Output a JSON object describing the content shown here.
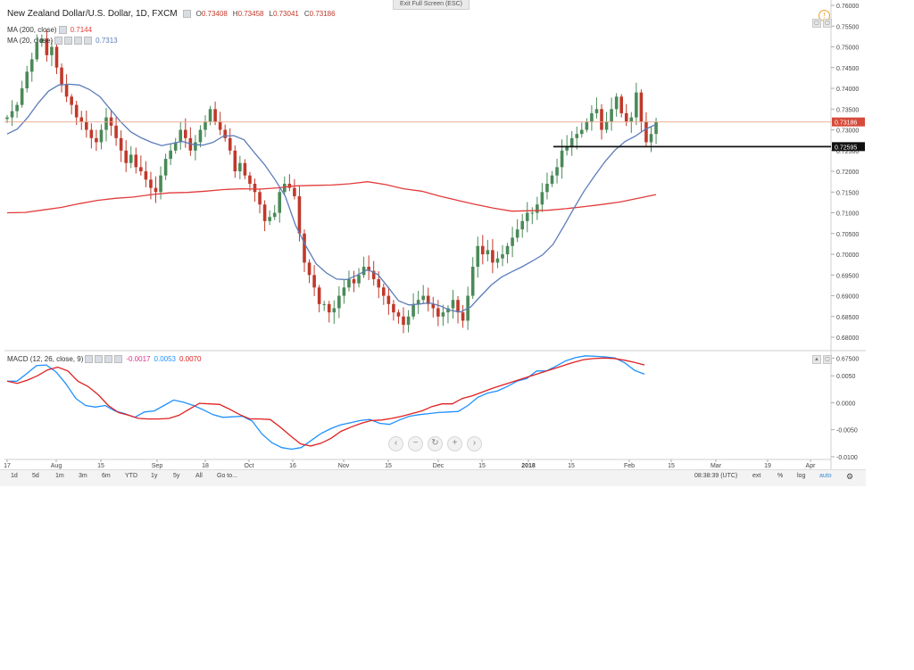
{
  "exit_fullscreen": "Exit Full Screen (ESC)",
  "legend": {
    "title": "New Zealand Dollar/U.S. Dollar, 1D, FXCM",
    "ohlc": [
      {
        "k": "O",
        "v": "0.73408"
      },
      {
        "k": "H",
        "v": "0.73458"
      },
      {
        "k": "L",
        "v": "0.73041"
      },
      {
        "k": "C",
        "v": "0.73186"
      }
    ],
    "ma200_label": "MA (200, close)",
    "ma200_value": "0.7144",
    "ma20_label": "MA (20, close)",
    "ma20_value": "0.7313",
    "macd_label": "MACD (12, 26, close, 9)",
    "macd_values": [
      "-0.0017",
      "0.0053",
      "0.0070"
    ]
  },
  "colors": {
    "up": "#4a8a58",
    "down": "#c0392b",
    "ma20": "#5b7cb8",
    "ma200": "#e23b3b",
    "macd": "#1e90ff",
    "signal": "#e02020",
    "last_price": "#d64a3a"
  },
  "price_labels": {
    "last": "0.73186",
    "marked": "0.72595"
  },
  "time_labels": [
    "17",
    "Aug",
    "15",
    "Sep",
    "18",
    "Oct",
    "16",
    "Nov",
    "15",
    "Dec",
    "15",
    "2018",
    "15",
    "Feb",
    "15",
    "Mar",
    "19",
    "Apr"
  ],
  "toolbar": {
    "periods": [
      "1d",
      "5d",
      "1m",
      "3m",
      "6m",
      "YTD",
      "1y",
      "5y",
      "All",
      "Go to..."
    ],
    "time": "08:38:39 (UTC)",
    "right": [
      "ext",
      "%",
      "log",
      "auto"
    ]
  },
  "chart_data": [
    {
      "type": "candlestick",
      "title": "New Zealand Dollar/U.S. Dollar, 1D, FXCM",
      "ylim": [
        0.677,
        0.76
      ],
      "y_ticks": [
        "0.67500",
        "0.68000",
        "0.68500",
        "0.69000",
        "0.69500",
        "0.70000",
        "0.70500",
        "0.71000",
        "0.71500",
        "0.72000",
        "0.72500",
        "0.73000",
        "0.73500",
        "0.74000",
        "0.74500",
        "0.75000",
        "0.75500",
        "0.76000"
      ],
      "close": [
        0.733,
        0.7345,
        0.736,
        0.74,
        0.744,
        0.747,
        0.751,
        0.752,
        0.748,
        0.75,
        0.745,
        0.741,
        0.738,
        0.736,
        0.733,
        0.732,
        0.73,
        0.728,
        0.727,
        0.73,
        0.733,
        0.731,
        0.728,
        0.725,
        0.722,
        0.724,
        0.721,
        0.72,
        0.718,
        0.716,
        0.715,
        0.719,
        0.723,
        0.725,
        0.727,
        0.73,
        0.728,
        0.725,
        0.727,
        0.73,
        0.732,
        0.735,
        0.732,
        0.73,
        0.728,
        0.725,
        0.72,
        0.722,
        0.719,
        0.717,
        0.715,
        0.712,
        0.708,
        0.709,
        0.71,
        0.715,
        0.717,
        0.716,
        0.714,
        0.705,
        0.698,
        0.695,
        0.692,
        0.688,
        0.688,
        0.686,
        0.687,
        0.69,
        0.692,
        0.694,
        0.693,
        0.695,
        0.697,
        0.696,
        0.694,
        0.692,
        0.69,
        0.688,
        0.686,
        0.685,
        0.683,
        0.685,
        0.688,
        0.689,
        0.69,
        0.688,
        0.687,
        0.685,
        0.686,
        0.687,
        0.689,
        0.686,
        0.684,
        0.69,
        0.697,
        0.702,
        0.7,
        0.701,
        0.698,
        0.699,
        0.7,
        0.702,
        0.704,
        0.706,
        0.708,
        0.71,
        0.71,
        0.712,
        0.715,
        0.717,
        0.719,
        0.721,
        0.725,
        0.726,
        0.728,
        0.729,
        0.73,
        0.732,
        0.734,
        0.735,
        0.73,
        0.732,
        0.735,
        0.738,
        0.734,
        0.732,
        0.733,
        0.739,
        0.732,
        0.727,
        0.729,
        0.7319
      ],
      "ma200": [
        0.71,
        0.7101,
        0.7107,
        0.7113,
        0.7122,
        0.713,
        0.7135,
        0.7138,
        0.7144,
        0.7148,
        0.7149,
        0.7152,
        0.7156,
        0.7158,
        0.7157,
        0.716,
        0.7165,
        0.7166,
        0.7167,
        0.717,
        0.7175,
        0.7168,
        0.7158,
        0.7152,
        0.714,
        0.713,
        0.712,
        0.7111,
        0.7104,
        0.7105,
        0.7106,
        0.711,
        0.7115,
        0.712,
        0.7126,
        0.7135,
        0.7144
      ],
      "ma20": [
        0.729,
        0.7302,
        0.733,
        0.7364,
        0.7393,
        0.7408,
        0.741,
        0.7408,
        0.7397,
        0.738,
        0.735,
        0.732,
        0.7295,
        0.7281,
        0.727,
        0.7262,
        0.7267,
        0.7272,
        0.7265,
        0.7263,
        0.727,
        0.7285,
        0.7286,
        0.7276,
        0.7245,
        0.7216,
        0.718,
        0.714,
        0.707,
        0.702,
        0.6977,
        0.6955,
        0.694,
        0.6939,
        0.695,
        0.6963,
        0.6951,
        0.692,
        0.6888,
        0.6878,
        0.688,
        0.6883,
        0.6876,
        0.6865,
        0.6861,
        0.6873,
        0.69,
        0.6926,
        0.6945,
        0.6958,
        0.697,
        0.6984,
        0.6999,
        0.7024,
        0.7066,
        0.711,
        0.7152,
        0.7188,
        0.7222,
        0.7251,
        0.7272,
        0.7285,
        0.7302,
        0.7313
      ]
    },
    {
      "type": "line",
      "title": "MACD (12, 26, close, 9)",
      "ylim": [
        -0.0105,
        0.0095
      ],
      "y_ticks": [
        "-0.0100",
        "-0.0050",
        "0.0000",
        "0.0050"
      ],
      "series": [
        {
          "name": "MACD",
          "values": [
            0.004,
            0.004,
            0.0054,
            0.0069,
            0.007,
            0.0057,
            0.0035,
            0.0008,
            -0.0005,
            -0.0008,
            -0.0005,
            -0.0015,
            -0.002,
            -0.0027,
            -0.0017,
            -0.0015,
            -0.0005,
            0.0005,
            0.0001,
            -0.0005,
            -0.0013,
            -0.0022,
            -0.0027,
            -0.0026,
            -0.0025,
            -0.0034,
            -0.0058,
            -0.0074,
            -0.0083,
            -0.0086,
            -0.0083,
            -0.007,
            -0.0057,
            -0.0048,
            -0.0041,
            -0.0037,
            -0.0033,
            -0.0031,
            -0.0038,
            -0.004,
            -0.0032,
            -0.0025,
            -0.0022,
            -0.002,
            -0.0018,
            -0.0017,
            -0.0016,
            -0.0005,
            0.001,
            0.0018,
            0.0022,
            0.003,
            0.004,
            0.0045,
            0.0059,
            0.0059,
            0.0068,
            0.0078,
            0.0084,
            0.0087,
            0.0086,
            0.0085,
            0.0083,
            0.0074,
            0.006,
            0.0053
          ]
        },
        {
          "name": "Signal",
          "values": [
            0.004,
            0.0036,
            0.0042,
            0.005,
            0.0061,
            0.0066,
            0.0059,
            0.004,
            0.003,
            0.0015,
            -0.0005,
            -0.0018,
            -0.0023,
            -0.0029,
            -0.003,
            -0.003,
            -0.0029,
            -0.0023,
            -0.0012,
            -0.0001,
            -0.0002,
            -0.0003,
            -0.0012,
            -0.0022,
            -0.003,
            -0.003,
            -0.0031,
            -0.0045,
            -0.0061,
            -0.0076,
            -0.008,
            -0.0075,
            -0.0066,
            -0.0053,
            -0.0045,
            -0.0038,
            -0.0033,
            -0.0032,
            -0.0029,
            -0.0025,
            -0.002,
            -0.0015,
            -0.0007,
            -0.0002,
            -0.0002,
            0.0008,
            0.0013,
            0.002,
            0.0027,
            0.0033,
            0.0039,
            0.0045,
            0.0051,
            0.0057,
            0.0063,
            0.0069,
            0.0075,
            0.008,
            0.0082,
            0.0083,
            0.0082,
            0.0079,
            0.0075,
            0.007
          ]
        }
      ]
    }
  ]
}
